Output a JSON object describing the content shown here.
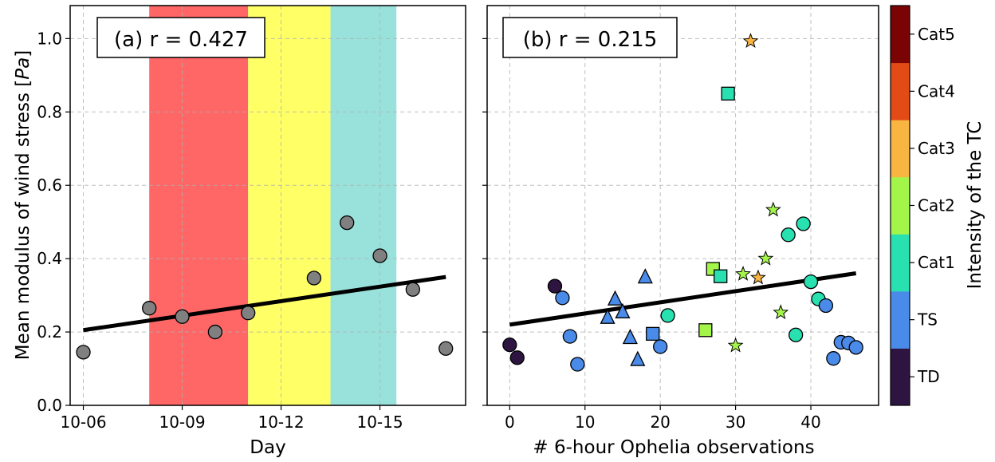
{
  "colors": {
    "band_red": "#ff6666",
    "band_yellow": "#ffff66",
    "band_cyan": "#99e2dc",
    "fit_line": "#000000",
    "grey_marker": "#808080",
    "intensity": {
      "TD": "#2d1441",
      "TS": "#4a8ae8",
      "Cat1": "#28e0b0",
      "Cat2": "#a3f54a",
      "Cat3": "#f8b541",
      "Cat4": "#e24b15",
      "Cat5": "#7a0404"
    }
  },
  "colorbar": {
    "label": "Intensity of the TC",
    "ticks": [
      "TD",
      "TS",
      "Cat1",
      "Cat2",
      "Cat3",
      "Cat4",
      "Cat5"
    ]
  },
  "chart_data": [
    {
      "type": "scatter",
      "panel_label": "(a) r = 0.427",
      "xlabel": "Day",
      "ylabel": "Mean modulus of wind stress [Pa]",
      "ylabel_plain": "Mean modulus of wind stress [",
      "ylabel_italic": "Pa",
      "ylabel_close": "]",
      "x_unit": "day",
      "xlim": [
        "2017-10-05T14:24",
        "2017-10-17T14:24"
      ],
      "ylim": [
        0,
        1.09
      ],
      "grid": true,
      "xticks": [
        {
          "date": "2017-10-06",
          "label": "10-06"
        },
        {
          "date": "2017-10-09",
          "label": "10-09"
        },
        {
          "date": "2017-10-12",
          "label": "10-12"
        },
        {
          "date": "2017-10-15",
          "label": "10-15"
        }
      ],
      "yticks": [
        0.0,
        0.2,
        0.4,
        0.6,
        0.8,
        1.0
      ],
      "ytick_labels": [
        "0.0",
        "0.2",
        "0.4",
        "0.6",
        "0.8",
        "1.0"
      ],
      "bands": [
        {
          "from": "2017-10-08",
          "to": "2017-10-11",
          "color_key": "band_red"
        },
        {
          "from": "2017-10-11",
          "to": "2017-10-13T12:00",
          "color_key": "band_yellow"
        },
        {
          "from": "2017-10-13T12:00",
          "to": "2017-10-15T12:00",
          "color_key": "band_cyan"
        }
      ],
      "points": [
        {
          "date": "2017-10-06",
          "y": 0.145
        },
        {
          "date": "2017-10-08",
          "y": 0.265
        },
        {
          "date": "2017-10-09",
          "y": 0.242
        },
        {
          "date": "2017-10-10",
          "y": 0.2
        },
        {
          "date": "2017-10-11",
          "y": 0.252
        },
        {
          "date": "2017-10-13",
          "y": 0.347
        },
        {
          "date": "2017-10-14",
          "y": 0.498
        },
        {
          "date": "2017-10-15",
          "y": 0.408
        },
        {
          "date": "2017-10-16",
          "y": 0.316
        },
        {
          "date": "2017-10-17",
          "y": 0.155
        }
      ],
      "fit_line": [
        {
          "date": "2017-10-06",
          "y": 0.205
        },
        {
          "date": "2017-10-17",
          "y": 0.35
        }
      ]
    },
    {
      "type": "scatter",
      "panel_label": "(b) r = 0.215",
      "xlabel": "# 6-hour Ophelia observations",
      "ylabel": "",
      "xlim": [
        -3,
        49
      ],
      "ylim": [
        0,
        1.09
      ],
      "grid": true,
      "xticks": [
        0,
        10,
        20,
        30,
        40
      ],
      "yticks": [
        0.0,
        0.2,
        0.4,
        0.6,
        0.8,
        1.0
      ],
      "points": [
        {
          "x": 0,
          "y": 0.165,
          "marker": "circle",
          "category": "TD"
        },
        {
          "x": 1,
          "y": 0.13,
          "marker": "circle",
          "category": "TD"
        },
        {
          "x": 6,
          "y": 0.325,
          "marker": "circle",
          "category": "TD"
        },
        {
          "x": 7,
          "y": 0.293,
          "marker": "circle",
          "category": "TS"
        },
        {
          "x": 8,
          "y": 0.188,
          "marker": "circle",
          "category": "TS"
        },
        {
          "x": 9,
          "y": 0.112,
          "marker": "circle",
          "category": "TS"
        },
        {
          "x": 13,
          "y": 0.24,
          "marker": "triangle",
          "category": "TS"
        },
        {
          "x": 14,
          "y": 0.29,
          "marker": "triangle",
          "category": "TS"
        },
        {
          "x": 15,
          "y": 0.255,
          "marker": "triangle",
          "category": "TS"
        },
        {
          "x": 16,
          "y": 0.185,
          "marker": "triangle",
          "category": "TS"
        },
        {
          "x": 17,
          "y": 0.125,
          "marker": "triangle",
          "category": "TS"
        },
        {
          "x": 18,
          "y": 0.35,
          "marker": "triangle",
          "category": "TS"
        },
        {
          "x": 19,
          "y": 0.195,
          "marker": "square",
          "category": "TS"
        },
        {
          "x": 20,
          "y": 0.16,
          "marker": "circle",
          "category": "TS"
        },
        {
          "x": 21,
          "y": 0.245,
          "marker": "circle",
          "category": "Cat1"
        },
        {
          "x": 26,
          "y": 0.205,
          "marker": "square",
          "category": "Cat2"
        },
        {
          "x": 27,
          "y": 0.372,
          "marker": "square",
          "category": "Cat2"
        },
        {
          "x": 28,
          "y": 0.352,
          "marker": "square",
          "category": "Cat1"
        },
        {
          "x": 29,
          "y": 0.85,
          "marker": "square",
          "category": "Cat1"
        },
        {
          "x": 30,
          "y": 0.163,
          "marker": "star",
          "category": "Cat2"
        },
        {
          "x": 31,
          "y": 0.358,
          "marker": "star",
          "category": "Cat2"
        },
        {
          "x": 32,
          "y": 0.993,
          "marker": "star",
          "category": "Cat3"
        },
        {
          "x": 33,
          "y": 0.348,
          "marker": "star",
          "category": "Cat3"
        },
        {
          "x": 34,
          "y": 0.4,
          "marker": "star",
          "category": "Cat2"
        },
        {
          "x": 35,
          "y": 0.533,
          "marker": "star",
          "category": "Cat2"
        },
        {
          "x": 36,
          "y": 0.253,
          "marker": "star",
          "category": "Cat2"
        },
        {
          "x": 37,
          "y": 0.465,
          "marker": "circle",
          "category": "Cat1"
        },
        {
          "x": 38,
          "y": 0.192,
          "marker": "circle",
          "category": "Cat1"
        },
        {
          "x": 39,
          "y": 0.495,
          "marker": "circle",
          "category": "Cat1"
        },
        {
          "x": 40,
          "y": 0.337,
          "marker": "circle",
          "category": "Cat1"
        },
        {
          "x": 41,
          "y": 0.29,
          "marker": "circle",
          "category": "Cat1"
        },
        {
          "x": 42,
          "y": 0.272,
          "marker": "circle",
          "category": "TS"
        },
        {
          "x": 43,
          "y": 0.128,
          "marker": "circle",
          "category": "TS"
        },
        {
          "x": 44,
          "y": 0.172,
          "marker": "circle",
          "category": "TS"
        },
        {
          "x": 45,
          "y": 0.17,
          "marker": "circle",
          "category": "TS"
        },
        {
          "x": 46,
          "y": 0.158,
          "marker": "circle",
          "category": "TS"
        }
      ],
      "fit_line": [
        {
          "x": 0,
          "y": 0.22
        },
        {
          "x": 46,
          "y": 0.36
        }
      ]
    }
  ]
}
